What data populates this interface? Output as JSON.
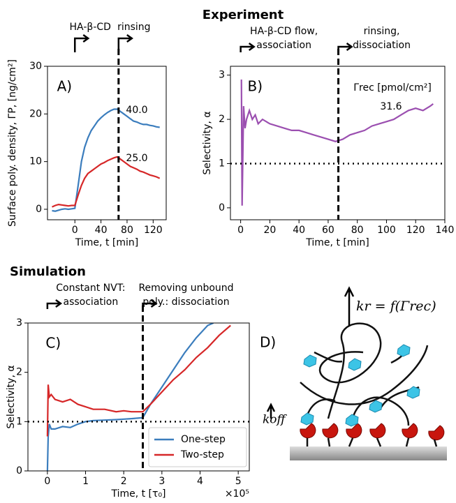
{
  "headings": [
    "Experiment",
    "Simulation"
  ],
  "chart_data": [
    {
      "type": "line",
      "panel_label": "A)",
      "xlabel": "Time, t [min]",
      "ylabel": "Surface poly. density, ΓP, [ng/cm²]",
      "xlim": [
        -42,
        140
      ],
      "xticks": [
        0,
        40,
        80,
        120
      ],
      "ylim": [
        -2.2,
        30
      ],
      "yticks": [
        0,
        10,
        20,
        30
      ],
      "vline": 67,
      "phases": [
        [
          "HA-β-CD"
        ],
        [
          "rinsing"
        ]
      ],
      "annotations": [
        "40.0",
        "25.0"
      ],
      "series": [
        {
          "color": "#3b7dbd",
          "x": [
            -35,
            -30,
            -25,
            -20,
            -15,
            -10,
            -5,
            0,
            5,
            10,
            15,
            20,
            25,
            30,
            35,
            40,
            45,
            50,
            55,
            60,
            65,
            70,
            75,
            80,
            85,
            90,
            95,
            100,
            105,
            110,
            115,
            120,
            125,
            130
          ],
          "values": [
            -0.3,
            -0.4,
            -0.2,
            0,
            0.1,
            0,
            0.1,
            0.2,
            5,
            10,
            13,
            15,
            16.5,
            17.5,
            18.5,
            19.2,
            19.8,
            20.3,
            20.7,
            21,
            21,
            20.5,
            20,
            19.5,
            19,
            18.5,
            18.3,
            18,
            17.8,
            17.8,
            17.6,
            17.5,
            17.3,
            17.2
          ]
        },
        {
          "color": "#d62728",
          "x": [
            -35,
            -30,
            -25,
            -20,
            -15,
            -10,
            -5,
            0,
            5,
            10,
            15,
            20,
            25,
            30,
            35,
            40,
            45,
            50,
            55,
            60,
            65,
            70,
            75,
            80,
            85,
            90,
            95,
            100,
            105,
            110,
            115,
            120,
            125,
            130
          ],
          "values": [
            0.5,
            0.8,
            1,
            0.9,
            0.8,
            0.7,
            0.8,
            0.8,
            3,
            5,
            6.5,
            7.5,
            8,
            8.5,
            9,
            9.5,
            9.8,
            10.2,
            10.5,
            10.8,
            11,
            10.5,
            10,
            9.5,
            9,
            8.7,
            8.4,
            8,
            7.8,
            7.5,
            7.2,
            7,
            6.8,
            6.5
          ]
        }
      ]
    },
    {
      "type": "line",
      "panel_label": "B)",
      "xlabel": "Time, t [min]",
      "ylabel": "Selectivity, α",
      "xlim": [
        -7,
        140
      ],
      "xticks": [
        0,
        20,
        40,
        60,
        80,
        100,
        120,
        140
      ],
      "ylim": [
        -0.27,
        3.2
      ],
      "yticks": [
        0,
        1,
        2,
        3
      ],
      "vline": 67,
      "hline": 1,
      "phases": [
        [
          "HA-β-CD flow,",
          "association"
        ],
        [
          "rinsing,",
          "dissociation"
        ]
      ],
      "annotations": [
        "Γrec [pmol/cm²]",
        "31.6"
      ],
      "series": [
        {
          "color": "#9b4fb0",
          "x": [
            0.5,
            1,
            2,
            3,
            4,
            6,
            8,
            10,
            12,
            15,
            20,
            25,
            30,
            35,
            40,
            45,
            50,
            55,
            60,
            65,
            70,
            75,
            80,
            85,
            90,
            95,
            100,
            105,
            110,
            115,
            120,
            125,
            130,
            132
          ],
          "values": [
            2.9,
            0.05,
            2.3,
            1.8,
            2,
            2.2,
            2,
            2.1,
            1.9,
            2,
            1.9,
            1.85,
            1.8,
            1.75,
            1.75,
            1.7,
            1.65,
            1.6,
            1.55,
            1.5,
            1.55,
            1.65,
            1.7,
            1.75,
            1.85,
            1.9,
            1.95,
            2,
            2.1,
            2.2,
            2.25,
            2.2,
            2.3,
            2.35
          ]
        }
      ]
    },
    {
      "type": "line",
      "panel_label": "C)",
      "xlabel": "Time, t [τ₀]",
      "x_offset_label": "×10⁵",
      "ylabel": "Selectivity, α",
      "xlim": [
        -0.51,
        5.29
      ],
      "xticks": [
        0,
        1,
        2,
        3,
        4,
        5
      ],
      "ylim": [
        0,
        3
      ],
      "yticks": [
        0,
        1,
        2,
        3
      ],
      "vline": 2.5,
      "hline": 1,
      "phases": [
        [
          "Constant NVT:",
          "association"
        ],
        [
          "Removing unbound",
          "poly.: dissociation"
        ]
      ],
      "annotations": [],
      "legend": "lower right",
      "series": [
        {
          "name": "One-step",
          "color": "#3b7dbd",
          "x": [
            0,
            0.02,
            0.05,
            0.1,
            0.2,
            0.4,
            0.6,
            0.8,
            1,
            1.2,
            1.5,
            1.8,
            2,
            2.2,
            2.5,
            2.7,
            3,
            3.3,
            3.6,
            3.9,
            4.2,
            4.35
          ],
          "values": [
            0,
            0.7,
            0.95,
            0.85,
            0.85,
            0.9,
            0.88,
            0.95,
            1,
            1.02,
            1.03,
            1.04,
            1.05,
            1.06,
            1.08,
            1.35,
            1.7,
            2.05,
            2.4,
            2.7,
            2.95,
            3
          ]
        },
        {
          "name": "Two-step",
          "color": "#d62728",
          "x": [
            0,
            0.02,
            0.05,
            0.1,
            0.2,
            0.4,
            0.6,
            0.8,
            1,
            1.2,
            1.5,
            1.8,
            2,
            2.2,
            2.5,
            2.7,
            3,
            3.3,
            3.6,
            3.9,
            4.2,
            4.5,
            4.8
          ],
          "values": [
            0.7,
            1.75,
            1.5,
            1.55,
            1.45,
            1.4,
            1.45,
            1.35,
            1.3,
            1.25,
            1.25,
            1.2,
            1.22,
            1.2,
            1.2,
            1.35,
            1.6,
            1.85,
            2.05,
            2.3,
            2.5,
            2.75,
            2.95
          ]
        }
      ]
    }
  ],
  "diagram": {
    "panel_label": "D)",
    "rate_label": "kr = f(Γrec)",
    "koff_label": "koff"
  }
}
